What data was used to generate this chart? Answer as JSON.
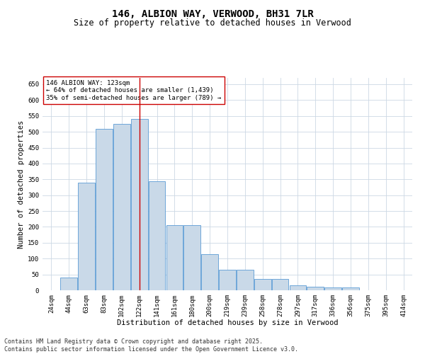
{
  "title": "146, ALBION WAY, VERWOOD, BH31 7LR",
  "subtitle": "Size of property relative to detached houses in Verwood",
  "xlabel": "Distribution of detached houses by size in Verwood",
  "ylabel": "Number of detached properties",
  "categories": [
    "24sqm",
    "44sqm",
    "63sqm",
    "83sqm",
    "102sqm",
    "122sqm",
    "141sqm",
    "161sqm",
    "180sqm",
    "200sqm",
    "219sqm",
    "239sqm",
    "258sqm",
    "278sqm",
    "297sqm",
    "317sqm",
    "336sqm",
    "356sqm",
    "375sqm",
    "395sqm",
    "414sqm"
  ],
  "bar_heights": [
    0,
    40,
    340,
    510,
    525,
    540,
    345,
    205,
    205,
    115,
    65,
    65,
    35,
    35,
    15,
    12,
    10,
    10,
    0,
    0,
    0
  ],
  "bar_color": "#c9d9e8",
  "bar_edge_color": "#5b9bd5",
  "reference_line_x": 5,
  "annotation_text": "146 ALBION WAY: 123sqm\n← 64% of detached houses are smaller (1,439)\n35% of semi-detached houses are larger (789) →",
  "annotation_box_color": "#ffffff",
  "annotation_box_edge": "#cc0000",
  "vline_color": "#cc0000",
  "ylim": [
    0,
    670
  ],
  "yticks": [
    0,
    50,
    100,
    150,
    200,
    250,
    300,
    350,
    400,
    450,
    500,
    550,
    600,
    650
  ],
  "footnote": "Contains HM Land Registry data © Crown copyright and database right 2025.\nContains public sector information licensed under the Open Government Licence v3.0.",
  "background_color": "#ffffff",
  "grid_color": "#ccd8e4",
  "title_fontsize": 10,
  "subtitle_fontsize": 8.5,
  "axis_label_fontsize": 7.5,
  "tick_fontsize": 6.5,
  "annotation_fontsize": 6.5,
  "footnote_fontsize": 6,
  "ylabel_fontsize": 7.5
}
